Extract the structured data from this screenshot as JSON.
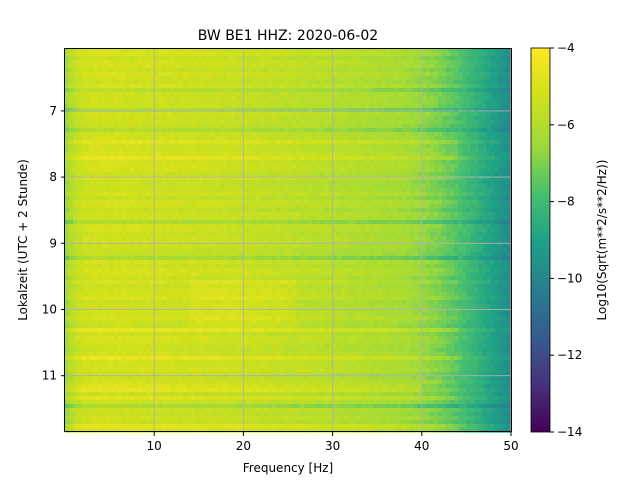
{
  "chart_data": {
    "type": "heatmap",
    "title": "BW BE1  HHZ: 2020-06-02",
    "xlabel": "Frequency [Hz]",
    "ylabel": "Lokalzeit (UTC + 2 Stunde)",
    "xlim": [
      0,
      50
    ],
    "ylim": [
      6.05,
      11.85
    ],
    "y_inverted": true,
    "x_ticks": [
      10,
      20,
      30,
      40,
      50
    ],
    "x_tick_labels": [
      "10",
      "20",
      "30",
      "40",
      "50"
    ],
    "y_ticks": [
      7,
      8,
      9,
      10,
      11
    ],
    "y_tick_labels": [
      "7",
      "8",
      "9",
      "10",
      "11"
    ],
    "grid": true,
    "colormap": "viridis",
    "colorbar": {
      "label": "Log10(Sqrt(m**2/s**2/Hz))",
      "vmin": -14,
      "vmax": -4,
      "ticks": [
        -14,
        -12,
        -10,
        -8,
        -6,
        -4
      ],
      "tick_labels": [
        "−14",
        "−12",
        "−10",
        "−8",
        "−6",
        "−4"
      ]
    },
    "values_description_approx": {
      "freq_hz": [
        0,
        1,
        2,
        4,
        10,
        20,
        30,
        38,
        40,
        42,
        44,
        46,
        48,
        50
      ],
      "typical_level": [
        -6.6,
        -5.7,
        -5.3,
        -5.2,
        -5.3,
        -5.5,
        -5.9,
        -6.3,
        -6.6,
        -7.0,
        -7.6,
        -8.3,
        -9.0,
        -9.8
      ]
    }
  }
}
